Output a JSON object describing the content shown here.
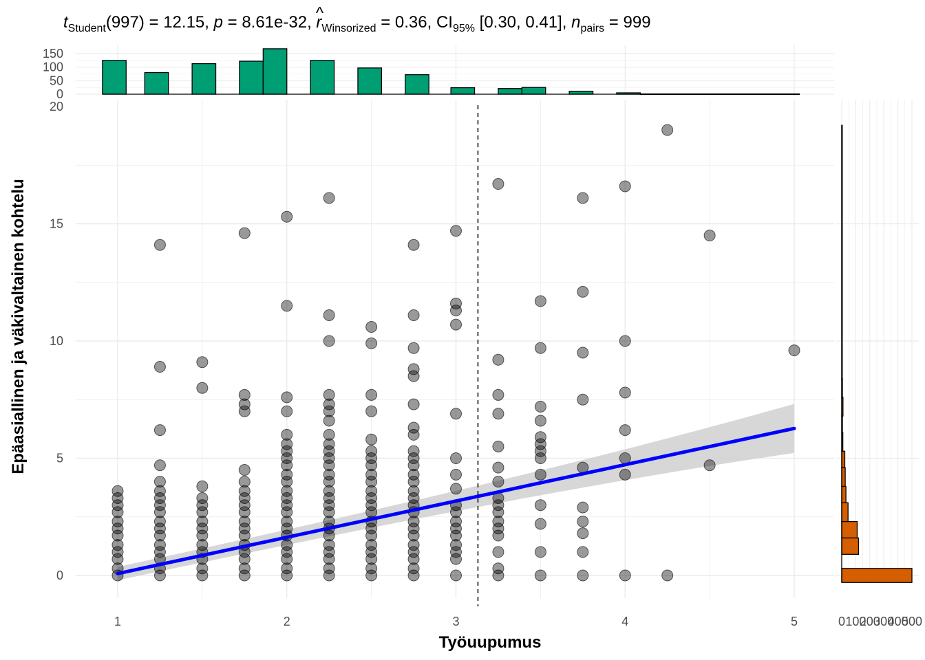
{
  "chart_data": {
    "type": "scatter",
    "title": {
      "t_label": "t",
      "t_sub": "Student",
      "df_part": "(997) = 12.15, ",
      "p_label": "p",
      "p_part": " = 8.61e-32, ",
      "r_hat": "^",
      "r_label": "r",
      "r_sub": "Winsorized",
      "r_part": " = 0.36, CI",
      "ci_sub": "95%",
      "ci_part": " [0.30, 0.41], ",
      "n_label": "n",
      "n_sub": "pairs",
      "n_part": " = 999"
    },
    "xlabel": "Työuupumus",
    "ylabel": "Epäasiallinen ja väkivaltainen kohtelu",
    "xlim": [
      0.75,
      5.1
    ],
    "ylim": [
      -0.4,
      19.2
    ],
    "x_ticks": [
      1,
      2,
      3,
      4,
      5
    ],
    "y_ticks": [
      0,
      5,
      10,
      15
    ],
    "mean_x": 3.13,
    "points": [
      [
        1,
        0
      ],
      [
        1,
        0.3
      ],
      [
        1,
        0.7
      ],
      [
        1,
        1
      ],
      [
        1,
        1.3
      ],
      [
        1,
        1.7
      ],
      [
        1,
        2
      ],
      [
        1,
        2.3
      ],
      [
        1,
        2.7
      ],
      [
        1,
        3
      ],
      [
        1,
        3.3
      ],
      [
        1,
        3.6
      ],
      [
        1.25,
        0
      ],
      [
        1.25,
        0.3
      ],
      [
        1.25,
        0.7
      ],
      [
        1.25,
        1
      ],
      [
        1.25,
        1.3
      ],
      [
        1.25,
        1.7
      ],
      [
        1.25,
        2
      ],
      [
        1.25,
        2.3
      ],
      [
        1.25,
        2.7
      ],
      [
        1.25,
        3
      ],
      [
        1.25,
        3.3
      ],
      [
        1.25,
        3.6
      ],
      [
        1.25,
        4
      ],
      [
        1.25,
        4.7
      ],
      [
        1.25,
        6.2
      ],
      [
        1.25,
        8.9
      ],
      [
        1.25,
        14.1
      ],
      [
        1.5,
        0
      ],
      [
        1.5,
        0.3
      ],
      [
        1.5,
        0.7
      ],
      [
        1.5,
        1
      ],
      [
        1.5,
        1.3
      ],
      [
        1.5,
        1.7
      ],
      [
        1.5,
        2
      ],
      [
        1.5,
        2.3
      ],
      [
        1.5,
        2.7
      ],
      [
        1.5,
        3
      ],
      [
        1.5,
        3.3
      ],
      [
        1.5,
        3.8
      ],
      [
        1.5,
        8
      ],
      [
        1.5,
        9.1
      ],
      [
        1.75,
        0
      ],
      [
        1.75,
        0.3
      ],
      [
        1.75,
        0.7
      ],
      [
        1.75,
        1
      ],
      [
        1.75,
        1.3
      ],
      [
        1.75,
        1.7
      ],
      [
        1.75,
        2
      ],
      [
        1.75,
        2.3
      ],
      [
        1.75,
        2.7
      ],
      [
        1.75,
        3
      ],
      [
        1.75,
        3.3
      ],
      [
        1.75,
        3.6
      ],
      [
        1.75,
        4
      ],
      [
        1.75,
        4.5
      ],
      [
        1.75,
        7
      ],
      [
        1.75,
        7.3
      ],
      [
        1.75,
        7.7
      ],
      [
        1.75,
        14.6
      ],
      [
        2,
        0
      ],
      [
        2,
        0.3
      ],
      [
        2,
        0.7
      ],
      [
        2,
        1
      ],
      [
        2,
        1.3
      ],
      [
        2,
        1.7
      ],
      [
        2,
        2
      ],
      [
        2,
        2.3
      ],
      [
        2,
        2.7
      ],
      [
        2,
        3
      ],
      [
        2,
        3.3
      ],
      [
        2,
        3.6
      ],
      [
        2,
        4
      ],
      [
        2,
        4.3
      ],
      [
        2,
        4.7
      ],
      [
        2,
        5
      ],
      [
        2,
        5.3
      ],
      [
        2,
        5.6
      ],
      [
        2,
        6
      ],
      [
        2,
        7
      ],
      [
        2,
        7.6
      ],
      [
        2,
        11.5
      ],
      [
        2,
        15.3
      ],
      [
        2.25,
        0
      ],
      [
        2.25,
        0.3
      ],
      [
        2.25,
        0.7
      ],
      [
        2.25,
        1
      ],
      [
        2.25,
        1.3
      ],
      [
        2.25,
        1.7
      ],
      [
        2.25,
        2
      ],
      [
        2.25,
        2.3
      ],
      [
        2.25,
        2.7
      ],
      [
        2.25,
        3
      ],
      [
        2.25,
        3.3
      ],
      [
        2.25,
        3.6
      ],
      [
        2.25,
        4
      ],
      [
        2.25,
        4.3
      ],
      [
        2.25,
        4.7
      ],
      [
        2.25,
        5
      ],
      [
        2.25,
        5.3
      ],
      [
        2.25,
        5.6
      ],
      [
        2.25,
        6
      ],
      [
        2.25,
        6.6
      ],
      [
        2.25,
        7
      ],
      [
        2.25,
        7.3
      ],
      [
        2.25,
        7.7
      ],
      [
        2.25,
        10
      ],
      [
        2.25,
        11.1
      ],
      [
        2.25,
        16.1
      ],
      [
        2.5,
        0
      ],
      [
        2.5,
        0.3
      ],
      [
        2.5,
        0.7
      ],
      [
        2.5,
        1
      ],
      [
        2.5,
        1.3
      ],
      [
        2.5,
        1.7
      ],
      [
        2.5,
        2
      ],
      [
        2.5,
        2.3
      ],
      [
        2.5,
        2.7
      ],
      [
        2.5,
        3
      ],
      [
        2.5,
        3.3
      ],
      [
        2.5,
        3.6
      ],
      [
        2.5,
        4
      ],
      [
        2.5,
        4.3
      ],
      [
        2.5,
        4.7
      ],
      [
        2.5,
        5
      ],
      [
        2.5,
        5.3
      ],
      [
        2.5,
        5.8
      ],
      [
        2.5,
        7
      ],
      [
        2.5,
        7.7
      ],
      [
        2.5,
        9.9
      ],
      [
        2.5,
        10.6
      ],
      [
        2.75,
        0
      ],
      [
        2.75,
        0.3
      ],
      [
        2.75,
        0.7
      ],
      [
        2.75,
        1
      ],
      [
        2.75,
        1.3
      ],
      [
        2.75,
        1.7
      ],
      [
        2.75,
        2
      ],
      [
        2.75,
        2.3
      ],
      [
        2.75,
        2.7
      ],
      [
        2.75,
        3
      ],
      [
        2.75,
        3.3
      ],
      [
        2.75,
        3.6
      ],
      [
        2.75,
        4
      ],
      [
        2.75,
        4.3
      ],
      [
        2.75,
        4.7
      ],
      [
        2.75,
        5
      ],
      [
        2.75,
        5.3
      ],
      [
        2.75,
        6
      ],
      [
        2.75,
        6.3
      ],
      [
        2.75,
        7.3
      ],
      [
        2.75,
        8.5
      ],
      [
        2.75,
        8.8
      ],
      [
        2.75,
        9.7
      ],
      [
        2.75,
        11.1
      ],
      [
        2.75,
        14.1
      ],
      [
        3,
        0
      ],
      [
        3,
        0.7
      ],
      [
        3,
        1
      ],
      [
        3,
        1.3
      ],
      [
        3,
        1.7
      ],
      [
        3,
        2
      ],
      [
        3,
        2.3
      ],
      [
        3,
        2.7
      ],
      [
        3,
        3
      ],
      [
        3,
        3.7
      ],
      [
        3,
        4.3
      ],
      [
        3,
        5
      ],
      [
        3,
        6.9
      ],
      [
        3,
        10.7
      ],
      [
        3,
        11.3
      ],
      [
        3,
        11.6
      ],
      [
        3,
        14.7
      ],
      [
        3.25,
        0
      ],
      [
        3.25,
        0.3
      ],
      [
        3.25,
        1
      ],
      [
        3.25,
        1.7
      ],
      [
        3.25,
        2
      ],
      [
        3.25,
        2.3
      ],
      [
        3.25,
        2.7
      ],
      [
        3.25,
        3
      ],
      [
        3.25,
        3.3
      ],
      [
        3.25,
        4
      ],
      [
        3.25,
        4.6
      ],
      [
        3.25,
        5.5
      ],
      [
        3.25,
        6.9
      ],
      [
        3.25,
        7.7
      ],
      [
        3.25,
        9.2
      ],
      [
        3.25,
        16.7
      ],
      [
        3.5,
        0
      ],
      [
        3.5,
        1
      ],
      [
        3.5,
        2.2
      ],
      [
        3.5,
        3
      ],
      [
        3.5,
        4.3
      ],
      [
        3.5,
        5
      ],
      [
        3.5,
        5.3
      ],
      [
        3.5,
        5.6
      ],
      [
        3.5,
        5.9
      ],
      [
        3.5,
        6.6
      ],
      [
        3.5,
        7.2
      ],
      [
        3.5,
        9.7
      ],
      [
        3.5,
        11.7
      ],
      [
        3.75,
        0
      ],
      [
        3.75,
        1
      ],
      [
        3.75,
        1.8
      ],
      [
        3.75,
        2.3
      ],
      [
        3.75,
        2.9
      ],
      [
        3.75,
        4.6
      ],
      [
        3.75,
        7.5
      ],
      [
        3.75,
        9.5
      ],
      [
        3.75,
        12.1
      ],
      [
        3.75,
        16.1
      ],
      [
        4,
        0
      ],
      [
        4,
        4.3
      ],
      [
        4,
        5
      ],
      [
        4,
        6.2
      ],
      [
        4,
        7.8
      ],
      [
        4,
        10
      ],
      [
        4,
        16.6
      ],
      [
        4.25,
        0
      ],
      [
        4.25,
        19
      ],
      [
        4.5,
        4.7
      ],
      [
        4.5,
        14.5
      ],
      [
        5,
        9.6
      ]
    ],
    "fit_line": {
      "x0": 1,
      "y0": 0.08,
      "x1": 5,
      "y1": 6.27,
      "band_x0": 1,
      "band_half_x0": 0.25,
      "band_x1": 5,
      "band_half_x1": 0.55
    },
    "x_histogram": {
      "axis_ticks": [
        0,
        50,
        100,
        150
      ],
      "bins": [
        {
          "x0": 0.91,
          "x1": 1.05,
          "count": 125
        },
        {
          "x0": 1.16,
          "x1": 1.3,
          "count": 80
        },
        {
          "x0": 1.44,
          "x1": 1.58,
          "count": 113
        },
        {
          "x0": 1.72,
          "x1": 1.86,
          "count": 122
        },
        {
          "x0": 1.86,
          "x1": 2.0,
          "count": 168
        },
        {
          "x0": 2.14,
          "x1": 2.28,
          "count": 125
        },
        {
          "x0": 2.42,
          "x1": 2.56,
          "count": 97
        },
        {
          "x0": 2.7,
          "x1": 2.84,
          "count": 72
        },
        {
          "x0": 2.97,
          "x1": 3.11,
          "count": 24
        },
        {
          "x0": 3.25,
          "x1": 3.39,
          "count": 21
        },
        {
          "x0": 3.39,
          "x1": 3.53,
          "count": 25
        },
        {
          "x0": 3.67,
          "x1": 3.81,
          "count": 11
        },
        {
          "x0": 3.95,
          "x1": 4.09,
          "count": 5
        },
        {
          "x0": 4.09,
          "x1": 5.03,
          "count": 1
        }
      ]
    },
    "y_histogram": {
      "axis_ticks": [
        0,
        100,
        200,
        300,
        400,
        500
      ],
      "axis_tick_labels": [
        "0",
        "100",
        "200",
        "300",
        "400",
        "500"
      ],
      "bins": [
        {
          "y0": -0.3,
          "y1": 0.3,
          "count": 500
        },
        {
          "y0": 0.9,
          "y1": 1.6,
          "count": 120
        },
        {
          "y0": 1.6,
          "y1": 2.3,
          "count": 110
        },
        {
          "y0": 2.3,
          "y1": 3.1,
          "count": 45
        },
        {
          "y0": 3.1,
          "y1": 3.8,
          "count": 30
        },
        {
          "y0": 3.8,
          "y1": 4.6,
          "count": 25
        },
        {
          "y0": 4.6,
          "y1": 5.3,
          "count": 22
        },
        {
          "y0": 5.3,
          "y1": 6.1,
          "count": 8
        },
        {
          "y0": 6.1,
          "y1": 6.8,
          "count": 5
        },
        {
          "y0": 6.8,
          "y1": 7.6,
          "count": 9
        },
        {
          "y0": 7.6,
          "y1": 8.4,
          "count": 5
        },
        {
          "y0": 8.4,
          "y1": 19.2,
          "count": 2
        }
      ]
    },
    "colors": {
      "points": "#000000",
      "fit_line": "#0000ff",
      "band": "#d3d3d3",
      "x_histogram": "#009e73",
      "y_histogram": "#d55e00",
      "grid": "#ebebeb"
    }
  }
}
